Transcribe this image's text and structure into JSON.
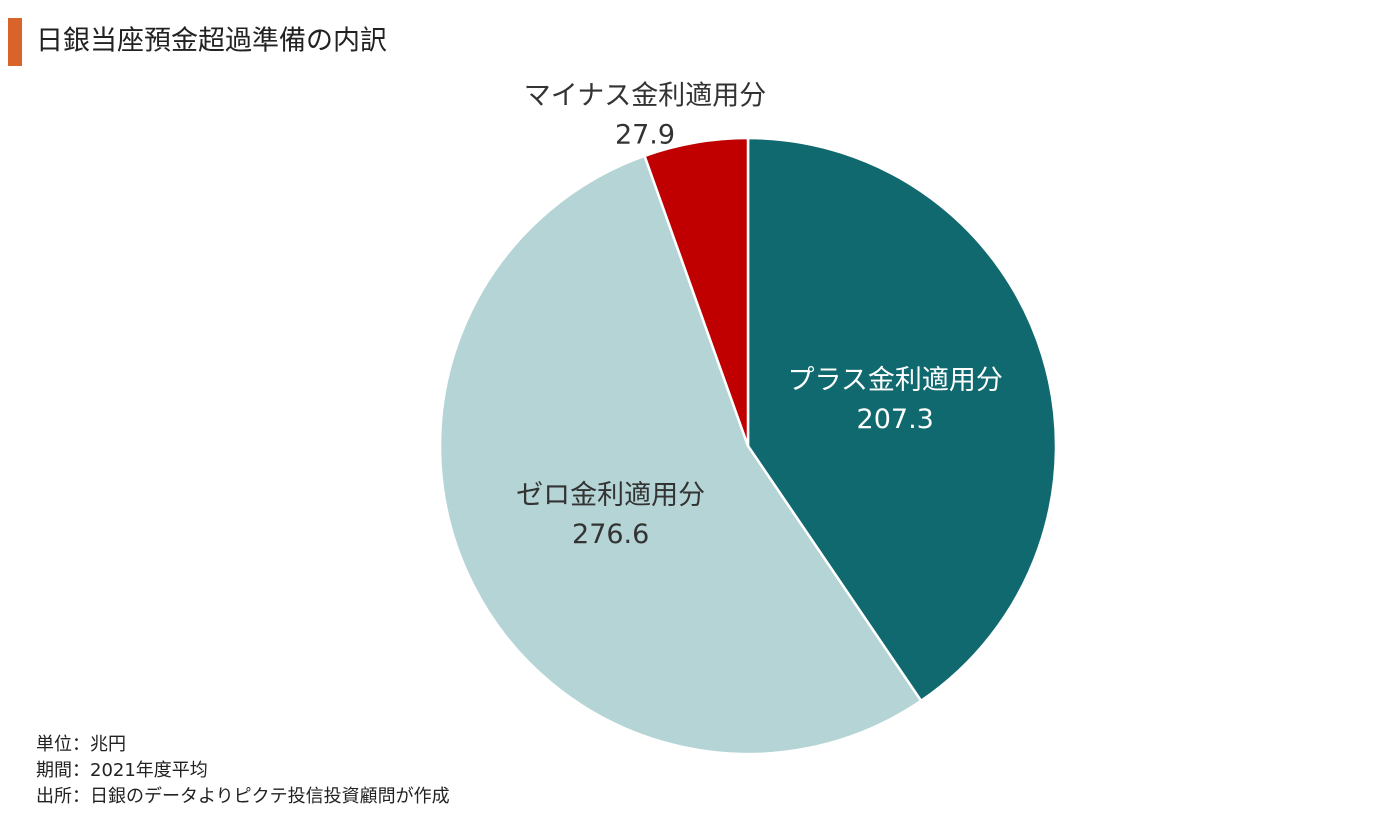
{
  "chart_data": {
    "type": "pie",
    "title": "日銀当座預金超過準備の内訳",
    "categories": [
      "プラス金利適用分",
      "ゼロ金利適用分",
      "マイナス金利適用分"
    ],
    "values": [
      207.3,
      276.6,
      27.9
    ],
    "colors": [
      "#116970",
      "#b5d4d5",
      "#c00000"
    ],
    "notes": [
      "単位：兆円",
      "期間：2021年度平均",
      "出所：日銀のデータよりピクテ投信投資顧問が作成"
    ]
  }
}
